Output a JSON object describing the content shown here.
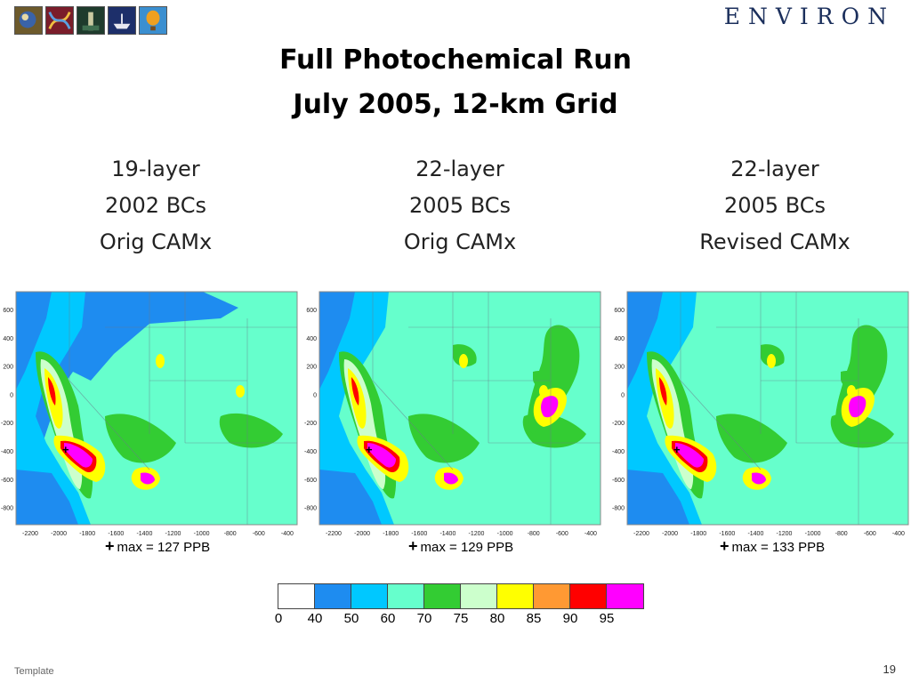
{
  "header": {
    "brand": "ENVIRON",
    "logo_tiles": [
      "logo-tile-1",
      "logo-tile-2",
      "logo-tile-3",
      "logo-tile-4",
      "logo-tile-5"
    ]
  },
  "slide": {
    "title_line1": "Full Photochemical Run",
    "title_line2": "July 2005, 12-km Grid",
    "footer_template": "Template",
    "page_number": "19"
  },
  "columns": [
    {
      "line1": "19-layer",
      "line2": "2002 BCs",
      "line3": "Orig CAMx",
      "max_text": "max = 127 PPB"
    },
    {
      "line1": "22-layer",
      "line2": "2005 BCs",
      "line3": "Orig CAMx",
      "max_text": "max = 129 PPB"
    },
    {
      "line1": "22-layer",
      "line2": "2005 BCs",
      "line3": "Revised CAMx",
      "max_text": "max = 133 PPB"
    }
  ],
  "map_axes": {
    "y_ticks": [
      "600",
      "400",
      "200",
      "0",
      "-200",
      "-400",
      "-600",
      "-800"
    ],
    "x_ticks": [
      "-2200",
      "-2000",
      "-1800",
      "-1600",
      "-1400",
      "-1200",
      "-1000",
      "-800",
      "-600",
      "-400"
    ]
  },
  "legend": {
    "bins": [
      {
        "label": "0",
        "color": "#ffffff"
      },
      {
        "label": "40",
        "color": "#1e8cf0"
      },
      {
        "label": "50",
        "color": "#00c8ff"
      },
      {
        "label": "60",
        "color": "#66ffcc"
      },
      {
        "label": "70",
        "color": "#33cc33"
      },
      {
        "label": "75",
        "color": "#ccffcc"
      },
      {
        "label": "80",
        "color": "#ffff00"
      },
      {
        "label": "85",
        "color": "#ff9933"
      },
      {
        "label": "90",
        "color": "#ff0000"
      },
      {
        "label": "95",
        "color": "#ff00ff"
      }
    ]
  }
}
